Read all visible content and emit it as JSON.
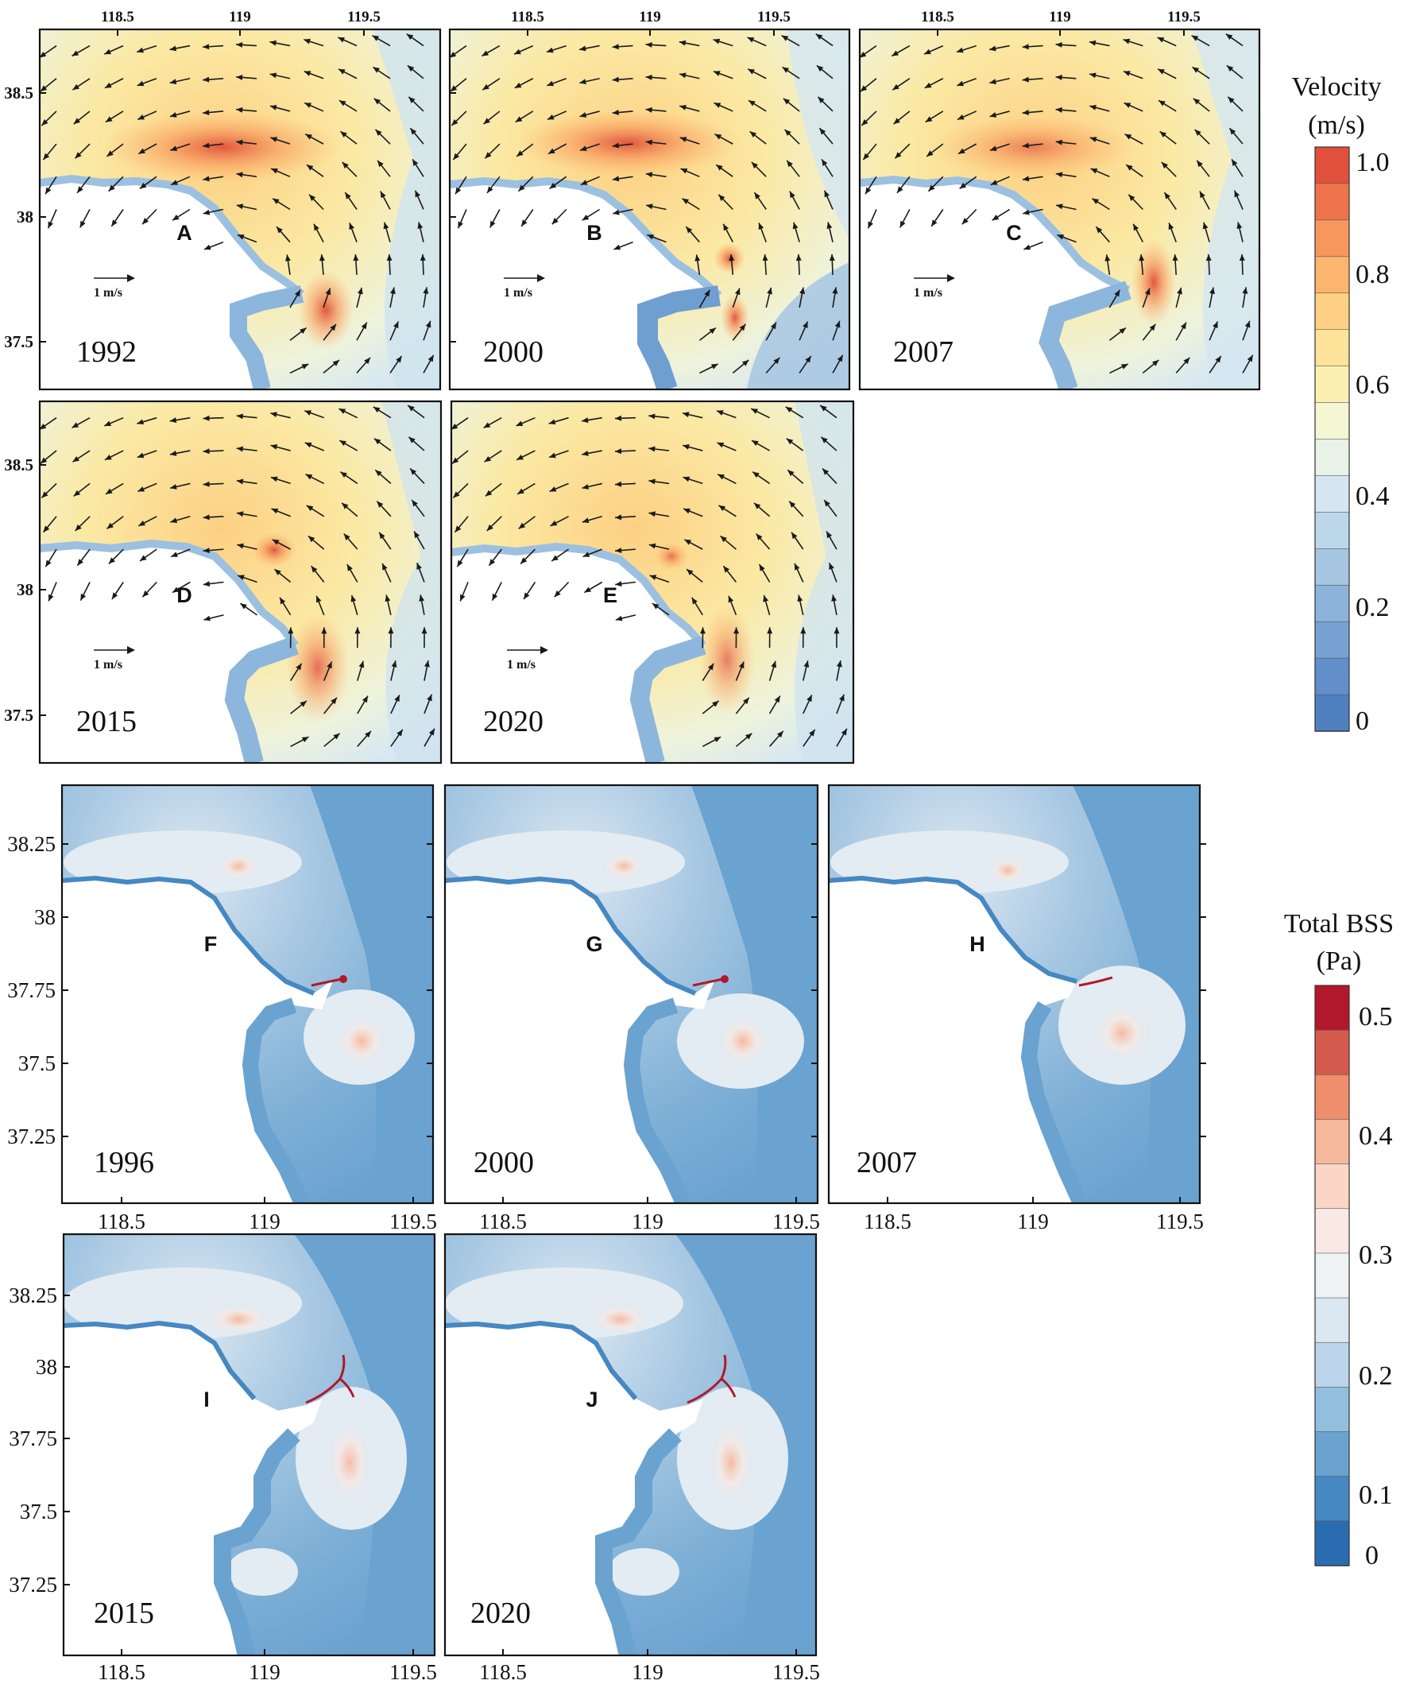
{
  "velocity": {
    "colorbar": {
      "title_line1": "Velocity",
      "title_line2": "(m/s)",
      "labels": [
        "1.0",
        "0.8",
        "0.6",
        "0.4",
        "0.2",
        "0"
      ],
      "colors": [
        "#4f7fbf",
        "#628fca",
        "#78a1d2",
        "#8eb3da",
        "#a6c6e2",
        "#bdd7ea",
        "#d5e6f1",
        "#e9f2e6",
        "#f5f6d3",
        "#fbf0b2",
        "#fde39a",
        "#fdd083",
        "#fbb56e",
        "#f7975b",
        "#ee734b",
        "#e0503c"
      ]
    },
    "x_ticks": [
      "118.5",
      "119",
      "119.5"
    ],
    "y_ticks": [
      "38.5",
      "38",
      "37.5"
    ],
    "scale_label": "1 m/s",
    "panels": [
      {
        "letter": "A",
        "year": "1992"
      },
      {
        "letter": "B",
        "year": "2000"
      },
      {
        "letter": "C",
        "year": "2007"
      },
      {
        "letter": "D",
        "year": "2015"
      },
      {
        "letter": "E",
        "year": "2020"
      }
    ]
  },
  "bss": {
    "colorbar": {
      "title_line1": "Total BSS",
      "title_line2": "(Pa)",
      "labels": [
        "0.5",
        "0.4",
        "0.3",
        "0.2",
        "0.1",
        "0"
      ],
      "colors": [
        "#2a6cb0",
        "#4688c2",
        "#6aa2d0",
        "#93bfdf",
        "#bcd5ea",
        "#dbe7f1",
        "#eef2f3",
        "#f8e9e4",
        "#fbd6c6",
        "#f6b89d",
        "#ee8e6c",
        "#d55a4e",
        "#b2182b"
      ]
    },
    "x_ticks": [
      "118.5",
      "119",
      "119.5"
    ],
    "y_ticks": [
      "38.25",
      "38",
      "37.75",
      "37.5",
      "37.25"
    ],
    "panels": [
      {
        "letter": "F",
        "year": "1996"
      },
      {
        "letter": "G",
        "year": "2000"
      },
      {
        "letter": "H",
        "year": "2007"
      },
      {
        "letter": "I",
        "year": "2015"
      },
      {
        "letter": "J",
        "year": "2020"
      }
    ]
  }
}
